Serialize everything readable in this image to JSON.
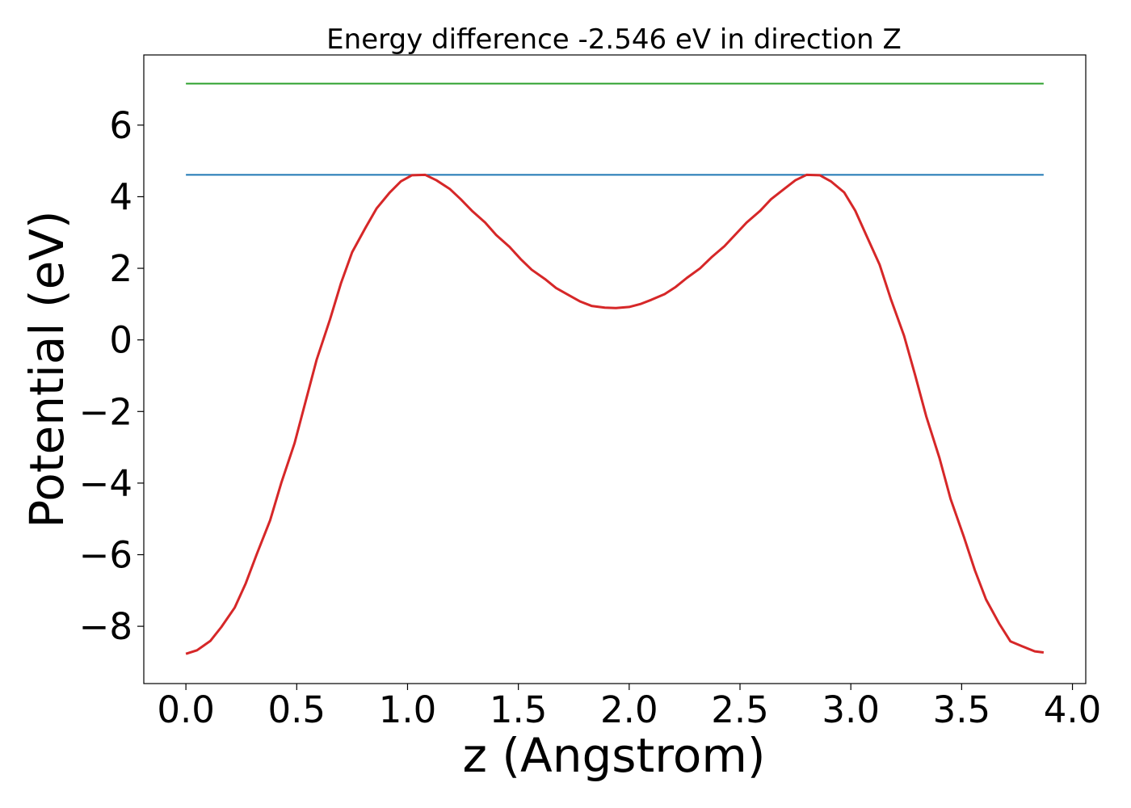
{
  "chart_data": {
    "type": "line",
    "title": "Energy difference -2.546 eV in direction Z",
    "xlabel": "z (Angstrom)",
    "ylabel": "Potential (eV)",
    "xlim": [
      -0.19,
      4.06
    ],
    "ylim": [
      -9.6,
      7.96
    ],
    "xticks": [
      0.0,
      0.5,
      1.0,
      1.5,
      2.0,
      2.5,
      3.0,
      3.5,
      4.0
    ],
    "xtick_labels": [
      "0.0",
      "0.5",
      "1.0",
      "1.5",
      "2.0",
      "2.5",
      "3.0",
      "3.5",
      "4.0"
    ],
    "yticks": [
      -8,
      -6,
      -4,
      -2,
      0,
      2,
      4,
      6
    ],
    "ytick_labels": [
      "−8",
      "−6",
      "−4",
      "−2",
      "0",
      "2",
      "4",
      "6"
    ],
    "grid": false,
    "legend": "none",
    "series": [
      {
        "color": "#2ca02c",
        "x": [
          0.0,
          3.87
        ],
        "y": [
          7.16,
          7.16
        ]
      },
      {
        "color": "#1f77b4",
        "x": [
          0.0,
          3.87
        ],
        "y": [
          4.61,
          4.61
        ]
      },
      {
        "color": "#d62728",
        "x": [
          0.0,
          0.05,
          0.11,
          0.16,
          0.22,
          0.27,
          0.32,
          0.38,
          0.43,
          0.49,
          0.54,
          0.59,
          0.65,
          0.7,
          0.75,
          0.81,
          0.86,
          0.92,
          0.97,
          1.02,
          1.08,
          1.13,
          1.19,
          1.24,
          1.29,
          1.35,
          1.4,
          1.46,
          1.51,
          1.56,
          1.62,
          1.67,
          1.73,
          1.78,
          1.83,
          1.89,
          1.94,
          2.0,
          2.05,
          2.1,
          2.16,
          2.21,
          2.26,
          2.32,
          2.37,
          2.43,
          2.48,
          2.53,
          2.59,
          2.64,
          2.7,
          2.75,
          2.8,
          2.86,
          2.91,
          2.97,
          3.02,
          3.07,
          3.13,
          3.18,
          3.24,
          3.29,
          3.34,
          3.4,
          3.45,
          3.51,
          3.56,
          3.61,
          3.67,
          3.72,
          3.77,
          3.83,
          3.87
        ],
        "y": [
          -8.77,
          -8.67,
          -8.41,
          -8.02,
          -7.48,
          -6.8,
          -5.98,
          -5.04,
          -4.0,
          -2.89,
          -1.72,
          -0.55,
          0.57,
          1.59,
          2.45,
          3.13,
          3.67,
          4.12,
          4.43,
          4.6,
          4.61,
          4.46,
          4.22,
          3.93,
          3.61,
          3.28,
          2.93,
          2.6,
          2.26,
          1.96,
          1.7,
          1.45,
          1.24,
          1.07,
          0.95,
          0.9,
          0.89,
          0.92,
          1.0,
          1.12,
          1.28,
          1.48,
          1.73,
          2.0,
          2.3,
          2.62,
          2.95,
          3.28,
          3.6,
          3.93,
          4.22,
          4.46,
          4.61,
          4.6,
          4.43,
          4.12,
          3.61,
          2.92,
          2.1,
          1.15,
          0.12,
          -0.98,
          -2.13,
          -3.3,
          -4.44,
          -5.5,
          -6.44,
          -7.25,
          -7.93,
          -8.42,
          -8.55,
          -8.7,
          -8.73
        ]
      }
    ]
  }
}
